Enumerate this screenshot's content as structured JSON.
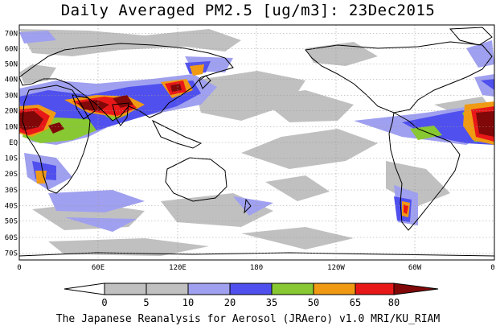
{
  "title": "Daily Averaged PM2.5 [ug/m3]: 23Dec2015",
  "footer": "The Japanese Reanalysis for Aerosol (JRAero) v1.0 MRI/KU_RIAM",
  "map": {
    "lat_labels": [
      "70N",
      "60N",
      "50N",
      "40N",
      "30N",
      "20N",
      "10N",
      "EQ",
      "10S",
      "20S",
      "30S",
      "40S",
      "50S",
      "60S",
      "70S"
    ],
    "lon_labels": [
      "0",
      "60E",
      "120E",
      "180",
      "120W",
      "60W",
      "0"
    ],
    "colors": {
      "ocean": "#ffffff",
      "coast": "#000000",
      "grid": "#9a9a9a"
    }
  },
  "colorbar": {
    "labels": [
      "0",
      "5",
      "10",
      "20",
      "35",
      "50",
      "65",
      "80"
    ],
    "colors": [
      "#ffffff",
      "#c0c0c0",
      "#a0a0f0",
      "#5050ee",
      "#88c832",
      "#f09a14",
      "#e81818",
      "#800808"
    ]
  }
}
